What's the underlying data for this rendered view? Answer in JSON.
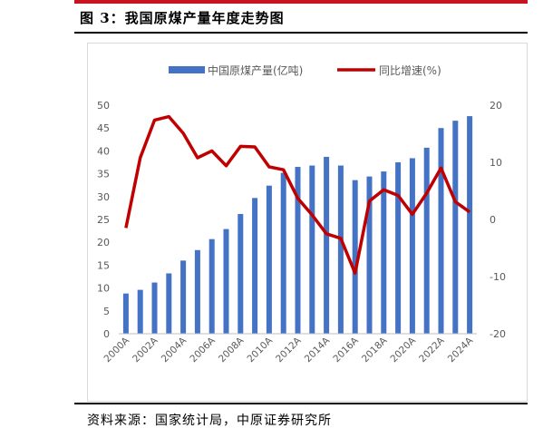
{
  "header": {
    "title": "图 3：我国原煤产量年度走势图"
  },
  "footer": {
    "source": "资料来源：国家统计局，中原证券研究所"
  },
  "chart_data": {
    "type": "bar",
    "categories": [
      "2000A",
      "2001A",
      "2002A",
      "2003A",
      "2004A",
      "2005A",
      "2006A",
      "2007A",
      "2008A",
      "2009A",
      "2010A",
      "2011A",
      "2012A",
      "2013A",
      "2014A",
      "2015A",
      "2016A",
      "2017A",
      "2018A",
      "2019A",
      "2020A",
      "2021A",
      "2022A",
      "2023A",
      "2024A"
    ],
    "x_tick_labels": [
      "2000A",
      "2002A",
      "2004A",
      "2006A",
      "2008A",
      "2010A",
      "2012A",
      "2014A",
      "2016A",
      "2018A",
      "2020A",
      "2022A",
      "2024A"
    ],
    "series": [
      {
        "name": "中国原煤产量(亿吨)",
        "type": "bar",
        "axis": "left",
        "color": "#4472c4",
        "values": [
          8.8,
          9.6,
          11.2,
          13.2,
          16.0,
          18.3,
          20.7,
          22.9,
          26.2,
          29.7,
          32.4,
          35.2,
          36.5,
          36.8,
          38.7,
          36.8,
          33.6,
          34.4,
          35.5,
          37.5,
          38.4,
          40.7,
          45.0,
          46.6,
          47.6
        ]
      },
      {
        "name": "同比增速(%)",
        "type": "line",
        "axis": "right",
        "color": "#c00000",
        "values": [
          -1.5,
          10.8,
          17.4,
          18.0,
          15.1,
          10.8,
          12.0,
          9.4,
          12.8,
          12.7,
          9.2,
          8.7,
          3.7,
          0.8,
          -2.5,
          -3.3,
          -9.4,
          3.2,
          5.2,
          4.2,
          0.9,
          4.6,
          9.0,
          3.1,
          1.3
        ]
      }
    ],
    "y_left": {
      "min": 0,
      "max": 50,
      "ticks": [
        0,
        5,
        10,
        15,
        20,
        25,
        30,
        35,
        40,
        45,
        50
      ]
    },
    "y_right": {
      "min": -20,
      "max": 20,
      "ticks": [
        -20,
        -10,
        0,
        10,
        20
      ]
    },
    "legend": {
      "position": "top"
    },
    "grid": false
  }
}
